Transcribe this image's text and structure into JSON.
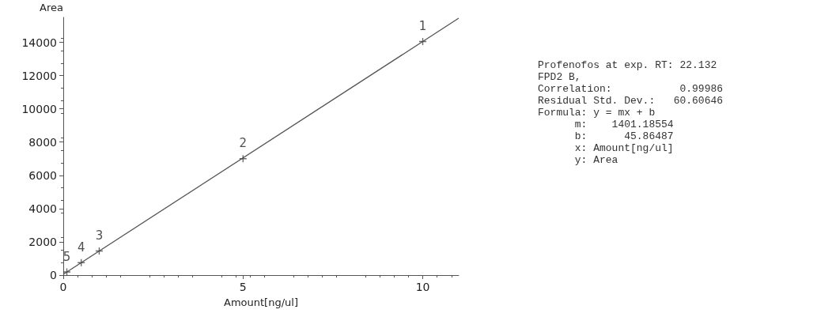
{
  "chart_data": {
    "type": "scatter",
    "xlabel": "Amount[ng/ul]",
    "ylabel": "Area",
    "series": [
      {
        "color": "#444444",
        "marker": "cross",
        "x": [
          10,
          5,
          1,
          0.5,
          0.1
        ],
        "values": [
          14050,
          7000,
          1450,
          750,
          190
        ]
      },
      {
        "type": "line",
        "color": "#555555",
        "marker": "none",
        "line_style": "solid",
        "x": [
          0,
          11
        ],
        "values": [
          50,
          15450
        ]
      }
    ],
    "xlim": [
      0,
      11
    ],
    "xticks": [
      0,
      5,
      10
    ],
    "ylim": [
      0,
      15500
    ],
    "yticks": [
      0,
      2000,
      4000,
      6000,
      8000,
      10000,
      12000,
      14000
    ],
    "grid": false,
    "annotations": [
      {
        "text": "1",
        "x": 10,
        "y": 14050
      },
      {
        "text": "2",
        "x": 5,
        "y": 7000
      },
      {
        "text": "3",
        "x": 1,
        "y": 1450
      },
      {
        "text": "4",
        "x": 0.5,
        "y": 750
      },
      {
        "text": "5",
        "x": 0.1,
        "y": 190
      },
      "Profenofos at exp. RT: 22.132",
      "FPD2 B,",
      "Correlation:           0.99986",
      "Residual Std. Dev.:   60.60646",
      "Formula: y = mx + b",
      "      m:    1401.18554",
      "      b:      45.86487",
      "      x: Amount[ng/ul]",
      "      y: Area"
    ]
  }
}
